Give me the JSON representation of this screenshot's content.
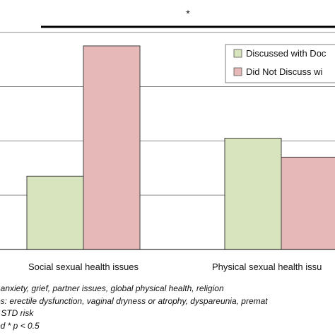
{
  "chart_data": {
    "type": "bar",
    "categories": [
      "Social sexual health issues",
      "Physical sexual health issues"
    ],
    "series": [
      {
        "name": "Discussed with Doctor",
        "values": [
          1.35,
          2.05
        ],
        "color": "#d7e4bd"
      },
      {
        "name": "Did Not Discuss with Doctor",
        "values": [
          3.75,
          1.7
        ],
        "color": "#e6b9b8"
      }
    ],
    "ylim": [
      0,
      4.4
    ],
    "gridlines": [
      1,
      2,
      3,
      4
    ],
    "grid": true,
    "legend": "top-right",
    "significance_marker": "*",
    "title": "",
    "xlabel": "",
    "ylabel": ""
  },
  "legend": {
    "item1": "Discussed with Doc",
    "item2": "Did Not Discuss wi"
  },
  "x_labels": {
    "social": "Social sexual health issues",
    "physical": "Physical sexual health issu"
  },
  "notes": {
    "line1": ": anxiety, grief, partner issues, global physical health, religion",
    "line2": "es: erectile dysfunction, vaginal dryness or atrophy, dyspareunia, premat",
    "line3": "r STD risk",
    "line4": "ed * p < 0.5"
  }
}
